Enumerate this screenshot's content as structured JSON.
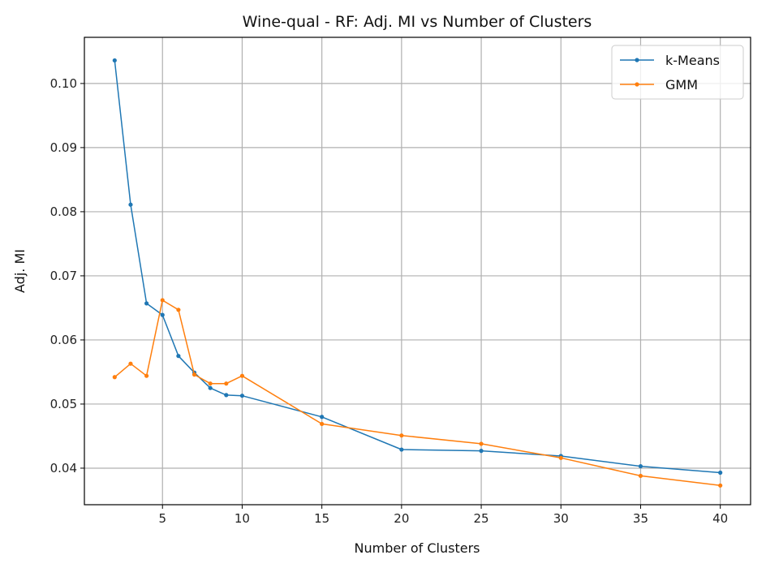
{
  "chart_data": {
    "type": "line",
    "title": "Wine-qual - RF: Adj. MI vs Number of Clusters",
    "xlabel": "Number of Clusters",
    "ylabel": "Adj. MI",
    "xlim": [
      0.1,
      41.9
    ],
    "ylim": [
      0.0343,
      0.1072
    ],
    "xticks": [
      5,
      10,
      15,
      20,
      25,
      30,
      35,
      40
    ],
    "xtick_labels": [
      "5",
      "10",
      "15",
      "20",
      "25",
      "30",
      "35",
      "40"
    ],
    "yticks": [
      0.04,
      0.05,
      0.06,
      0.07,
      0.08,
      0.09,
      0.1
    ],
    "ytick_labels": [
      "0.04",
      "0.05",
      "0.06",
      "0.07",
      "0.08",
      "0.09",
      "0.10"
    ],
    "grid": true,
    "legend_position": "top-right",
    "x": [
      2,
      3,
      4,
      5,
      6,
      7,
      8,
      9,
      10,
      15,
      20,
      25,
      30,
      35,
      40
    ],
    "series": [
      {
        "name": "k-Means",
        "color": "#1f77b4",
        "values": [
          0.1036,
          0.0811,
          0.0657,
          0.0639,
          0.0575,
          0.0549,
          0.0525,
          0.0514,
          0.0513,
          0.048,
          0.0429,
          0.0427,
          0.0419,
          0.0403,
          0.0393
        ]
      },
      {
        "name": "GMM",
        "color": "#ff7f0e",
        "values": [
          0.0542,
          0.0563,
          0.0544,
          0.0662,
          0.0647,
          0.0546,
          0.0532,
          0.0532,
          0.0544,
          0.0469,
          0.0451,
          0.0438,
          0.0416,
          0.0388,
          0.0373
        ]
      }
    ]
  }
}
